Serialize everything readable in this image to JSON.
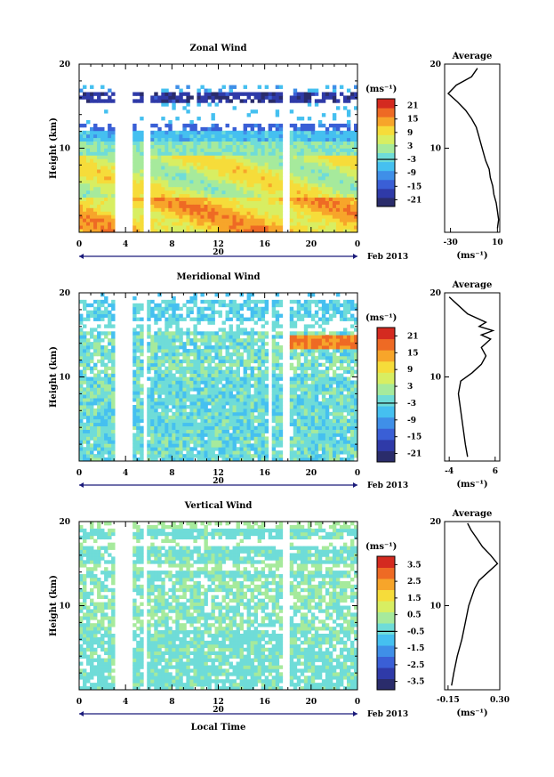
{
  "chart_data": [
    {
      "type": "heatmap",
      "title": "Zonal Wind",
      "ylabel": "Height (km)",
      "ylim": [
        0,
        20
      ],
      "y_ticks": [
        "10",
        "20"
      ],
      "x_ticks": [
        "0",
        "4",
        "8",
        "12",
        "16",
        "20",
        "0"
      ],
      "xlim_hours": [
        0,
        24
      ],
      "date_label": "20",
      "date_suffix": "Feb 2013",
      "colorbar": {
        "unit": "(ms⁻¹)",
        "ticks": [
          "21",
          "15",
          "9",
          "3",
          "-3",
          "-9",
          "-15",
          "-21"
        ],
        "range": [
          -24,
          24
        ]
      },
      "gaps_hours": [
        [
          3.1,
          4.6
        ],
        [
          5.6,
          6.0
        ],
        [
          17.6,
          18.1
        ]
      ],
      "profile": {
        "title": "Average",
        "xlim": [
          -35,
          12
        ],
        "x_ticks": [
          "-30",
          "10"
        ],
        "x_tick_values": [
          -30,
          10
        ],
        "y_ticks": [
          "10",
          "20"
        ],
        "unit": "(ms⁻¹)",
        "points": [
          [
            10,
            0.5
          ],
          [
            11,
            1.5
          ],
          [
            10,
            2.5
          ],
          [
            9,
            3.5
          ],
          [
            7,
            4.5
          ],
          [
            6,
            5.5
          ],
          [
            4,
            6.5
          ],
          [
            3,
            7.5
          ],
          [
            0,
            8.5
          ],
          [
            -2,
            9.5
          ],
          [
            -4,
            10.5
          ],
          [
            -6,
            11.5
          ],
          [
            -8,
            12.5
          ],
          [
            -12,
            13.5
          ],
          [
            -17,
            14.5
          ],
          [
            -24,
            15.5
          ],
          [
            -32,
            16.5
          ],
          [
            -25,
            17.5
          ],
          [
            -12,
            18.5
          ],
          [
            -7,
            19.5
          ]
        ]
      }
    },
    {
      "type": "heatmap",
      "title": "Meridional Wind",
      "ylabel": "Height (km)",
      "ylim": [
        0,
        20
      ],
      "y_ticks": [
        "10",
        "20"
      ],
      "x_ticks": [
        "0",
        "4",
        "8",
        "12",
        "16",
        "20",
        "0"
      ],
      "xlim_hours": [
        0,
        24
      ],
      "date_label": "20",
      "date_suffix": "Feb 2013",
      "colorbar": {
        "unit": "(ms⁻¹)",
        "ticks": [
          "21",
          "15",
          "9",
          "3",
          "-3",
          "-9",
          "-15",
          "-21"
        ],
        "range": [
          -24,
          24
        ]
      },
      "gaps_hours": [
        [
          3.1,
          4.6
        ],
        [
          5.5,
          5.9
        ],
        [
          16.2,
          16.6
        ],
        [
          17.6,
          18.1
        ]
      ],
      "profile": {
        "title": "Average",
        "xlim": [
          -5,
          7
        ],
        "x_ticks": [
          "-4",
          "6"
        ],
        "x_tick_values": [
          -4,
          6
        ],
        "y_ticks": [
          "10",
          "20"
        ],
        "unit": "(ms⁻¹)",
        "points": [
          [
            0,
            0.5
          ],
          [
            -0.5,
            2
          ],
          [
            -1,
            4
          ],
          [
            -1.5,
            6
          ],
          [
            -2,
            8
          ],
          [
            -1.5,
            9.5
          ],
          [
            1,
            10.5
          ],
          [
            3,
            11.5
          ],
          [
            4,
            12.5
          ],
          [
            3,
            13.5
          ],
          [
            5,
            14.5
          ],
          [
            3,
            15
          ],
          [
            5.5,
            15.5
          ],
          [
            2.5,
            16
          ],
          [
            4,
            16.5
          ],
          [
            0,
            17.5
          ],
          [
            -2,
            18.5
          ],
          [
            -4,
            19.5
          ]
        ]
      }
    },
    {
      "type": "heatmap",
      "title": "Vertical Wind",
      "ylabel": "Height (km)",
      "ylim": [
        0,
        20
      ],
      "y_ticks": [
        "10",
        "20"
      ],
      "x_ticks": [
        "0",
        "4",
        "8",
        "12",
        "16",
        "20",
        "0"
      ],
      "xlim_hours": [
        0,
        24
      ],
      "date_label": "20",
      "date_suffix": "Feb 2013",
      "xlabel": "Local Time",
      "colorbar": {
        "unit": "(ms⁻¹)",
        "ticks": [
          "3.5",
          "2.5",
          "1.5",
          "0.5",
          "-0.5",
          "-1.5",
          "-2.5",
          "-3.5"
        ],
        "range": [
          -4,
          4
        ]
      },
      "gaps_hours": [
        [
          3.1,
          4.6
        ],
        [
          5.6,
          5.9
        ],
        [
          17.6,
          18.1
        ]
      ],
      "profile": {
        "title": "Average",
        "xlim": [
          -0.18,
          0.3
        ],
        "x_ticks": [
          "-0.15",
          "0.30"
        ],
        "x_tick_values": [
          -0.15,
          0.3
        ],
        "y_ticks": [
          "10",
          "20"
        ],
        "unit": "(ms⁻¹)",
        "points": [
          [
            -0.12,
            0.5
          ],
          [
            -0.1,
            2
          ],
          [
            -0.07,
            4
          ],
          [
            -0.03,
            6
          ],
          [
            0,
            8
          ],
          [
            0.03,
            10
          ],
          [
            0.08,
            12
          ],
          [
            0.12,
            13
          ],
          [
            0.2,
            14
          ],
          [
            0.28,
            15
          ],
          [
            0.22,
            16
          ],
          [
            0.15,
            17
          ],
          [
            0.1,
            18
          ],
          [
            0.05,
            19
          ],
          [
            0.02,
            19.8
          ]
        ]
      }
    }
  ]
}
